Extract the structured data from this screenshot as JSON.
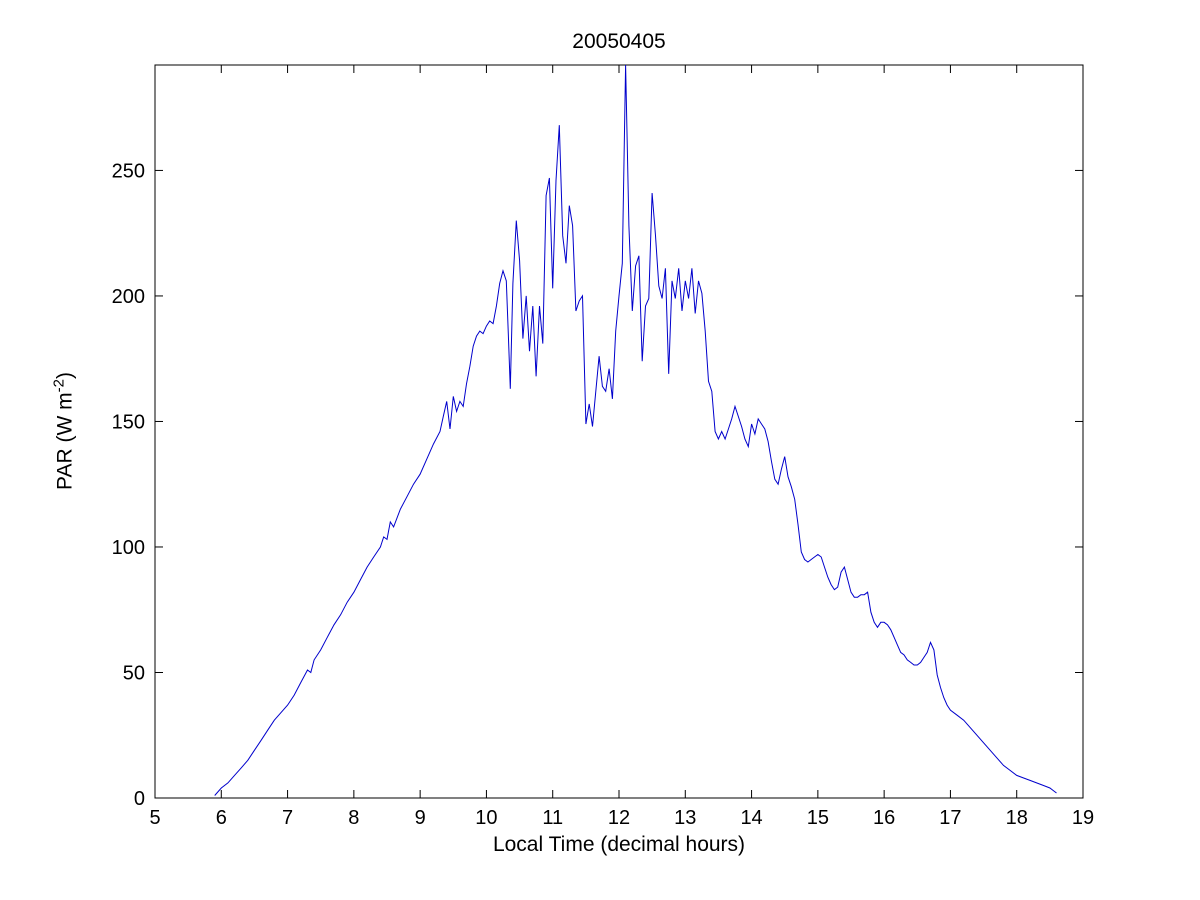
{
  "chart": {
    "title": "20050405",
    "xlabel": "Local Time (decimal hours)",
    "ylabel_prefix": "PAR (W m",
    "ylabel_sup": "-2",
    "ylabel_suffix": ")"
  },
  "chart_data": {
    "type": "line",
    "title": "20050405",
    "xlabel": "Local Time (decimal hours)",
    "ylabel": "PAR (W m^-2)",
    "xlim": [
      5,
      19
    ],
    "ylim": [
      0,
      292
    ],
    "xticks": [
      5,
      6,
      7,
      8,
      9,
      10,
      11,
      12,
      13,
      14,
      15,
      16,
      17,
      18,
      19
    ],
    "yticks": [
      0,
      50,
      100,
      150,
      200,
      250
    ],
    "grid": false,
    "legend": "none",
    "line_color": "#0000cc",
    "series": [
      {
        "name": "PAR",
        "points": [
          [
            5.9,
            1
          ],
          [
            6.0,
            4
          ],
          [
            6.1,
            6
          ],
          [
            6.2,
            9
          ],
          [
            6.3,
            12
          ],
          [
            6.4,
            15
          ],
          [
            6.5,
            19
          ],
          [
            6.6,
            23
          ],
          [
            6.7,
            27
          ],
          [
            6.8,
            31
          ],
          [
            6.9,
            34
          ],
          [
            7.0,
            37
          ],
          [
            7.1,
            41
          ],
          [
            7.2,
            46
          ],
          [
            7.3,
            51
          ],
          [
            7.35,
            50
          ],
          [
            7.4,
            55
          ],
          [
            7.5,
            59
          ],
          [
            7.6,
            64
          ],
          [
            7.7,
            69
          ],
          [
            7.8,
            73
          ],
          [
            7.9,
            78
          ],
          [
            8.0,
            82
          ],
          [
            8.1,
            87
          ],
          [
            8.2,
            92
          ],
          [
            8.3,
            96
          ],
          [
            8.4,
            100
          ],
          [
            8.45,
            104
          ],
          [
            8.5,
            103
          ],
          [
            8.55,
            110
          ],
          [
            8.6,
            108
          ],
          [
            8.7,
            115
          ],
          [
            8.8,
            120
          ],
          [
            8.9,
            125
          ],
          [
            9.0,
            129
          ],
          [
            9.1,
            135
          ],
          [
            9.2,
            141
          ],
          [
            9.3,
            146
          ],
          [
            9.35,
            152
          ],
          [
            9.4,
            158
          ],
          [
            9.45,
            147
          ],
          [
            9.5,
            160
          ],
          [
            9.55,
            154
          ],
          [
            9.6,
            158
          ],
          [
            9.65,
            156
          ],
          [
            9.7,
            165
          ],
          [
            9.75,
            172
          ],
          [
            9.8,
            180
          ],
          [
            9.85,
            184
          ],
          [
            9.9,
            186
          ],
          [
            9.95,
            185
          ],
          [
            10.0,
            188
          ],
          [
            10.05,
            190
          ],
          [
            10.1,
            189
          ],
          [
            10.15,
            196
          ],
          [
            10.2,
            205
          ],
          [
            10.25,
            210
          ],
          [
            10.3,
            206
          ],
          [
            10.33,
            185
          ],
          [
            10.36,
            163
          ],
          [
            10.4,
            205
          ],
          [
            10.45,
            230
          ],
          [
            10.5,
            214
          ],
          [
            10.55,
            183
          ],
          [
            10.6,
            200
          ],
          [
            10.65,
            178
          ],
          [
            10.7,
            196
          ],
          [
            10.75,
            168
          ],
          [
            10.8,
            196
          ],
          [
            10.85,
            181
          ],
          [
            10.9,
            240
          ],
          [
            10.95,
            247
          ],
          [
            11.0,
            203
          ],
          [
            11.05,
            246
          ],
          [
            11.1,
            268
          ],
          [
            11.15,
            224
          ],
          [
            11.2,
            213
          ],
          [
            11.25,
            236
          ],
          [
            11.3,
            228
          ],
          [
            11.35,
            194
          ],
          [
            11.4,
            198
          ],
          [
            11.45,
            200
          ],
          [
            11.5,
            149
          ],
          [
            11.55,
            157
          ],
          [
            11.6,
            148
          ],
          [
            11.65,
            162
          ],
          [
            11.7,
            176
          ],
          [
            11.75,
            164
          ],
          [
            11.8,
            162
          ],
          [
            11.85,
            171
          ],
          [
            11.9,
            159
          ],
          [
            11.95,
            186
          ],
          [
            12.0,
            200
          ],
          [
            12.05,
            213
          ],
          [
            12.1,
            292
          ],
          [
            12.12,
            265
          ],
          [
            12.15,
            228
          ],
          [
            12.2,
            194
          ],
          [
            12.25,
            212
          ],
          [
            12.3,
            216
          ],
          [
            12.35,
            174
          ],
          [
            12.4,
            196
          ],
          [
            12.45,
            199
          ],
          [
            12.5,
            241
          ],
          [
            12.55,
            224
          ],
          [
            12.6,
            204
          ],
          [
            12.65,
            199
          ],
          [
            12.7,
            211
          ],
          [
            12.75,
            169
          ],
          [
            12.8,
            206
          ],
          [
            12.85,
            199
          ],
          [
            12.9,
            211
          ],
          [
            12.95,
            194
          ],
          [
            13.0,
            206
          ],
          [
            13.05,
            199
          ],
          [
            13.1,
            211
          ],
          [
            13.15,
            193
          ],
          [
            13.2,
            206
          ],
          [
            13.25,
            201
          ],
          [
            13.3,
            186
          ],
          [
            13.35,
            166
          ],
          [
            13.4,
            162
          ],
          [
            13.45,
            146
          ],
          [
            13.5,
            143
          ],
          [
            13.55,
            146
          ],
          [
            13.6,
            143
          ],
          [
            13.65,
            147
          ],
          [
            13.7,
            151
          ],
          [
            13.75,
            156
          ],
          [
            13.8,
            152
          ],
          [
            13.85,
            148
          ],
          [
            13.9,
            143
          ],
          [
            13.95,
            140
          ],
          [
            14.0,
            149
          ],
          [
            14.05,
            145
          ],
          [
            14.1,
            151
          ],
          [
            14.15,
            149
          ],
          [
            14.2,
            147
          ],
          [
            14.25,
            142
          ],
          [
            14.3,
            134
          ],
          [
            14.35,
            127
          ],
          [
            14.4,
            125
          ],
          [
            14.45,
            131
          ],
          [
            14.5,
            136
          ],
          [
            14.55,
            128
          ],
          [
            14.6,
            124
          ],
          [
            14.65,
            119
          ],
          [
            14.7,
            109
          ],
          [
            14.75,
            98
          ],
          [
            14.8,
            95
          ],
          [
            14.85,
            94
          ],
          [
            14.9,
            95
          ],
          [
            14.95,
            96
          ],
          [
            15.0,
            97
          ],
          [
            15.05,
            96
          ],
          [
            15.1,
            92
          ],
          [
            15.15,
            88
          ],
          [
            15.2,
            85
          ],
          [
            15.25,
            83
          ],
          [
            15.3,
            84
          ],
          [
            15.35,
            90
          ],
          [
            15.4,
            92
          ],
          [
            15.45,
            87
          ],
          [
            15.5,
            82
          ],
          [
            15.55,
            80
          ],
          [
            15.6,
            80
          ],
          [
            15.65,
            81
          ],
          [
            15.7,
            81
          ],
          [
            15.75,
            82
          ],
          [
            15.8,
            74
          ],
          [
            15.85,
            70
          ],
          [
            15.9,
            68
          ],
          [
            15.95,
            70
          ],
          [
            16.0,
            70
          ],
          [
            16.05,
            69
          ],
          [
            16.1,
            67
          ],
          [
            16.15,
            64
          ],
          [
            16.2,
            61
          ],
          [
            16.25,
            58
          ],
          [
            16.3,
            57
          ],
          [
            16.35,
            55
          ],
          [
            16.4,
            54
          ],
          [
            16.45,
            53
          ],
          [
            16.5,
            53
          ],
          [
            16.55,
            54
          ],
          [
            16.6,
            56
          ],
          [
            16.65,
            58
          ],
          [
            16.7,
            62
          ],
          [
            16.75,
            59
          ],
          [
            16.8,
            49
          ],
          [
            16.85,
            44
          ],
          [
            16.9,
            40
          ],
          [
            16.95,
            37
          ],
          [
            17.0,
            35
          ],
          [
            17.1,
            33
          ],
          [
            17.2,
            31
          ],
          [
            17.3,
            28
          ],
          [
            17.4,
            25
          ],
          [
            17.5,
            22
          ],
          [
            17.6,
            19
          ],
          [
            17.7,
            16
          ],
          [
            17.8,
            13
          ],
          [
            17.9,
            11
          ],
          [
            18.0,
            9
          ],
          [
            18.1,
            8
          ],
          [
            18.2,
            7
          ],
          [
            18.3,
            6
          ],
          [
            18.4,
            5
          ],
          [
            18.5,
            4
          ],
          [
            18.55,
            3
          ],
          [
            18.6,
            2
          ]
        ]
      }
    ]
  }
}
